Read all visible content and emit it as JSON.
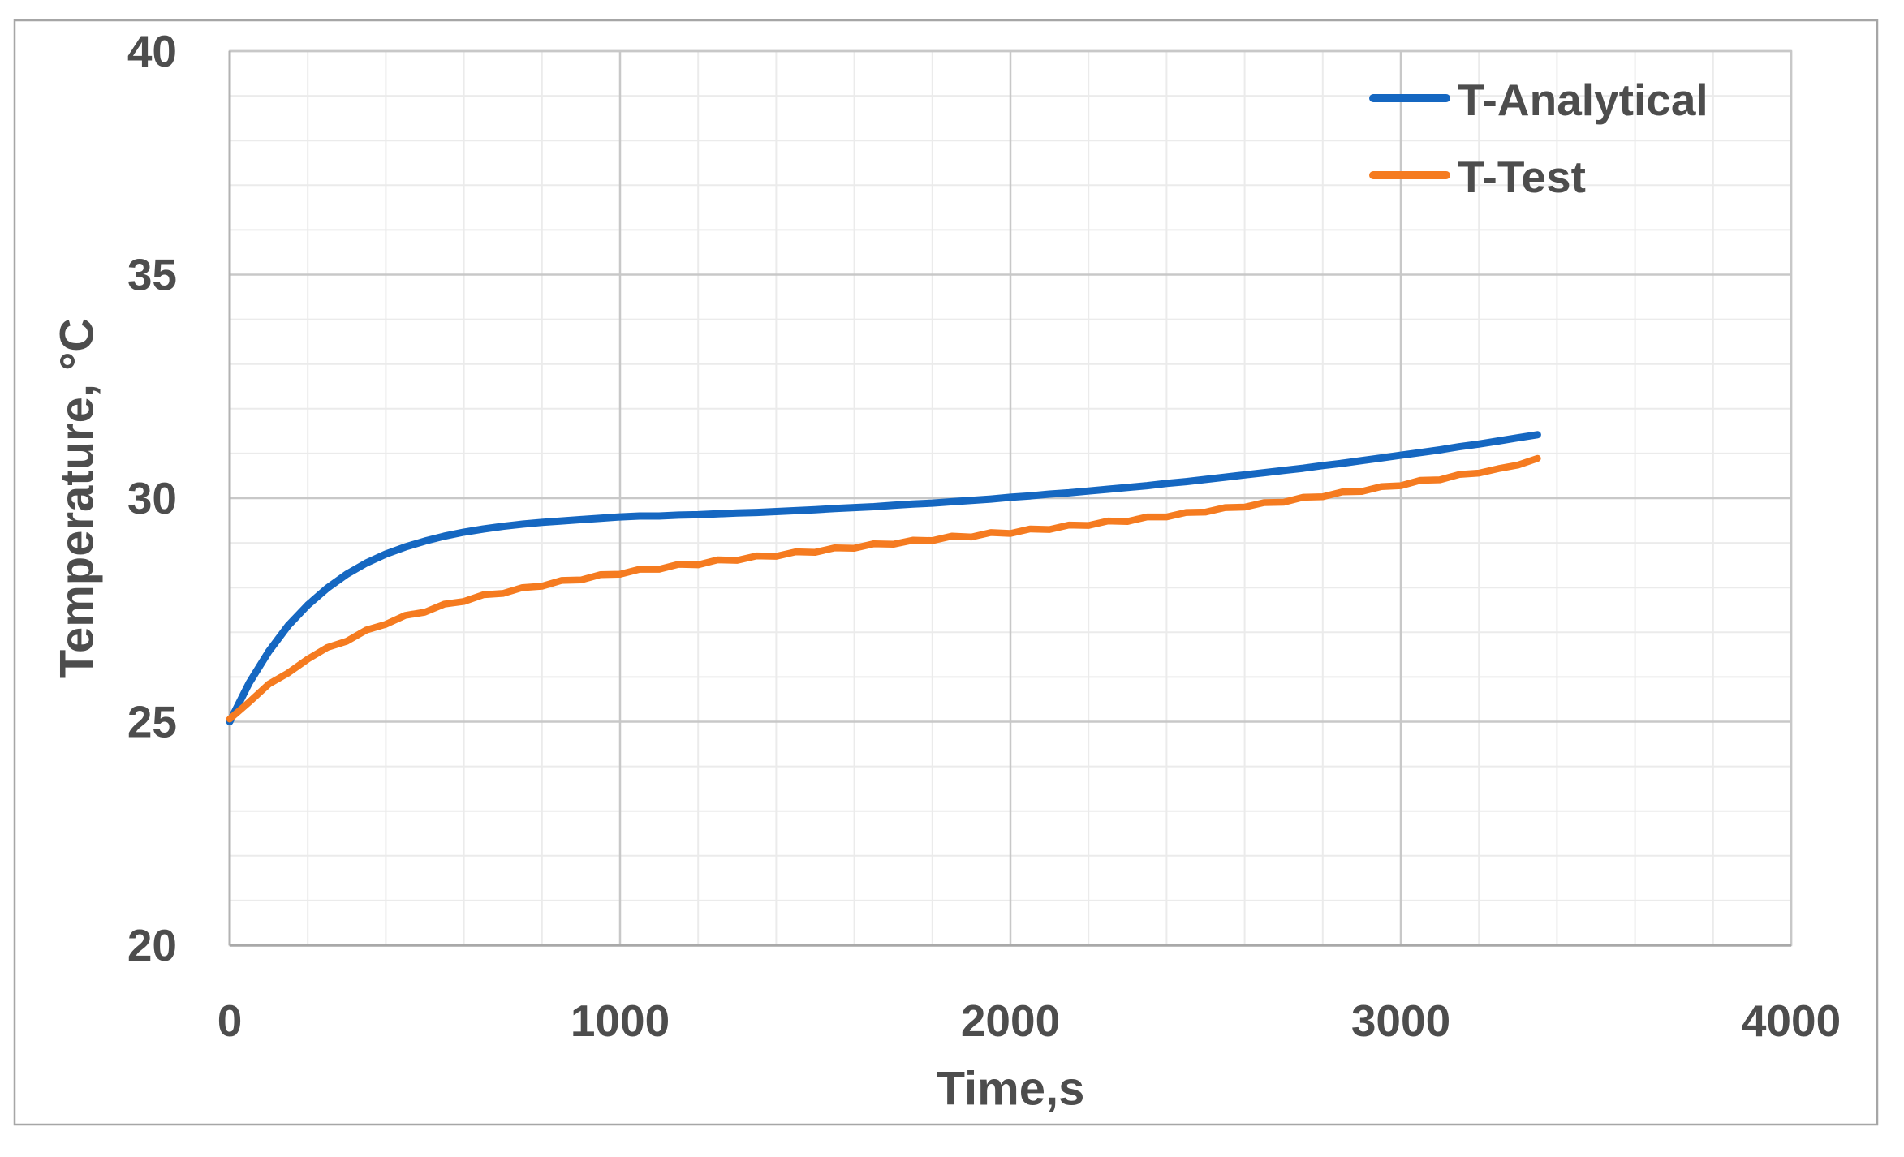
{
  "figure": {
    "background": "#FFFFFF",
    "border_color": "#A6A6A6",
    "text_color": "#4D4D4D",
    "grid_minor_color": "#EBEBEB",
    "grid_major_color": "#C8C8C8",
    "axis_line_color": "#A9A9A9"
  },
  "chart_data": {
    "type": "line",
    "title": "",
    "xlabel": "Time,s",
    "ylabel": "Temperature, °C",
    "xlim": [
      0,
      4000
    ],
    "ylim": [
      20,
      40
    ],
    "x_major_ticks": [
      0,
      1000,
      2000,
      3000,
      4000
    ],
    "y_major_ticks": [
      20,
      25,
      30,
      35,
      40
    ],
    "x_tick_labels": [
      "0",
      "1000",
      "2000",
      "3000",
      "4000"
    ],
    "y_tick_labels": [
      "20",
      "25",
      "30",
      "35",
      "40"
    ],
    "x_minor_unit": 200,
    "y_minor_unit": 1,
    "grid": "major+minor",
    "legend_position": "inside-top-right",
    "series": [
      {
        "name": "T-Analytical",
        "color": "#1567C1",
        "stroke_width": 9,
        "x": [
          0,
          50,
          100,
          150,
          200,
          250,
          300,
          350,
          400,
          450,
          500,
          550,
          600,
          650,
          700,
          750,
          800,
          850,
          900,
          950,
          1000,
          1050,
          1100,
          1150,
          1200,
          1250,
          1300,
          1350,
          1400,
          1450,
          1500,
          1550,
          1600,
          1650,
          1700,
          1750,
          1800,
          1850,
          1900,
          1950,
          2000,
          2050,
          2100,
          2150,
          2200,
          2250,
          2300,
          2350,
          2400,
          2450,
          2500,
          2550,
          2600,
          2650,
          2700,
          2750,
          2800,
          2850,
          2900,
          2950,
          3000,
          3050,
          3100,
          3150,
          3200,
          3250,
          3300,
          3350
        ],
        "y": [
          25.0,
          25.87,
          26.57,
          27.15,
          27.61,
          27.99,
          28.3,
          28.55,
          28.75,
          28.91,
          29.04,
          29.15,
          29.24,
          29.31,
          29.37,
          29.42,
          29.46,
          29.49,
          29.52,
          29.55,
          29.58,
          29.6,
          29.6,
          29.62,
          29.63,
          29.65,
          29.67,
          29.68,
          29.7,
          29.72,
          29.74,
          29.77,
          29.79,
          29.81,
          29.84,
          29.87,
          29.89,
          29.92,
          29.95,
          29.98,
          30.02,
          30.05,
          30.09,
          30.12,
          30.16,
          30.2,
          30.24,
          30.28,
          30.33,
          30.37,
          30.42,
          30.47,
          30.52,
          30.57,
          30.62,
          30.67,
          30.73,
          30.78,
          30.84,
          30.9,
          30.96,
          31.02,
          31.08,
          31.15,
          31.21,
          31.28,
          31.35,
          31.42
        ]
      },
      {
        "name": "T-Test",
        "color": "#F57B20",
        "stroke_width": 8.5,
        "x": [
          0,
          50,
          100,
          150,
          200,
          250,
          300,
          350,
          400,
          450,
          500,
          550,
          600,
          650,
          700,
          750,
          800,
          850,
          900,
          950,
          1000,
          1050,
          1100,
          1150,
          1200,
          1250,
          1300,
          1350,
          1400,
          1450,
          1500,
          1550,
          1600,
          1650,
          1700,
          1750,
          1800,
          1850,
          1900,
          1950,
          2000,
          2050,
          2100,
          2150,
          2200,
          2250,
          2300,
          2350,
          2400,
          2450,
          2500,
          2550,
          2600,
          2650,
          2700,
          2750,
          2800,
          2850,
          2900,
          2950,
          3000,
          3050,
          3100,
          3150,
          3200,
          3250,
          3300,
          3350
        ],
        "y": [
          25.06,
          25.44,
          25.84,
          26.09,
          26.4,
          26.66,
          26.8,
          27.05,
          27.18,
          27.38,
          27.45,
          27.63,
          27.69,
          27.84,
          27.87,
          28.0,
          28.03,
          28.16,
          28.17,
          28.29,
          28.3,
          28.41,
          28.41,
          28.52,
          28.51,
          28.62,
          28.61,
          28.71,
          28.7,
          28.8,
          28.79,
          28.89,
          28.88,
          28.98,
          28.97,
          29.06,
          29.05,
          29.15,
          29.13,
          29.23,
          29.21,
          29.31,
          29.3,
          29.4,
          29.39,
          29.49,
          29.48,
          29.58,
          29.58,
          29.68,
          29.69,
          29.79,
          29.8,
          29.9,
          29.91,
          30.02,
          30.03,
          30.14,
          30.15,
          30.26,
          30.28,
          30.4,
          30.41,
          30.53,
          30.56,
          30.66,
          30.74,
          30.89
        ],
        "noise_amplitude": 0.05
      }
    ]
  }
}
